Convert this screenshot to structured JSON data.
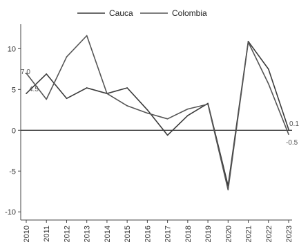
{
  "chart_data": {
    "type": "line",
    "title": "",
    "xlabel": "",
    "ylabel": "",
    "x": [
      "2010",
      "2011",
      "2012",
      "2013",
      "2014",
      "2015",
      "2016",
      "2017",
      "2018",
      "2019",
      "2020",
      "2021",
      "2022",
      "2023"
    ],
    "ylim": [
      -11,
      13
    ],
    "yticks": [
      10,
      5,
      0,
      -5,
      -10
    ],
    "grid": false,
    "legend": "top",
    "series": [
      {
        "name": "Cauca",
        "color": "#3a3a3a",
        "values": [
          4.5,
          6.9,
          3.9,
          5.2,
          4.5,
          5.2,
          2.5,
          -0.6,
          1.8,
          3.3,
          -6.8,
          10.9,
          7.5,
          0.1
        ]
      },
      {
        "name": "Colombia",
        "color": "#555555",
        "values": [
          7.0,
          3.8,
          9.0,
          11.6,
          4.5,
          3.0,
          2.1,
          1.4,
          2.6,
          3.2,
          -7.3,
          10.8,
          5.7,
          -0.5
        ]
      }
    ],
    "annotations": [
      {
        "text": "7.0",
        "x": "2010",
        "y": 7.0
      },
      {
        "text": "4.5",
        "x": "2010",
        "y": 4.5
      },
      {
        "text": "0.1",
        "x": "2023",
        "y": 0.1
      },
      {
        "text": "-0.5",
        "x": "2023",
        "y": -0.5
      }
    ]
  }
}
